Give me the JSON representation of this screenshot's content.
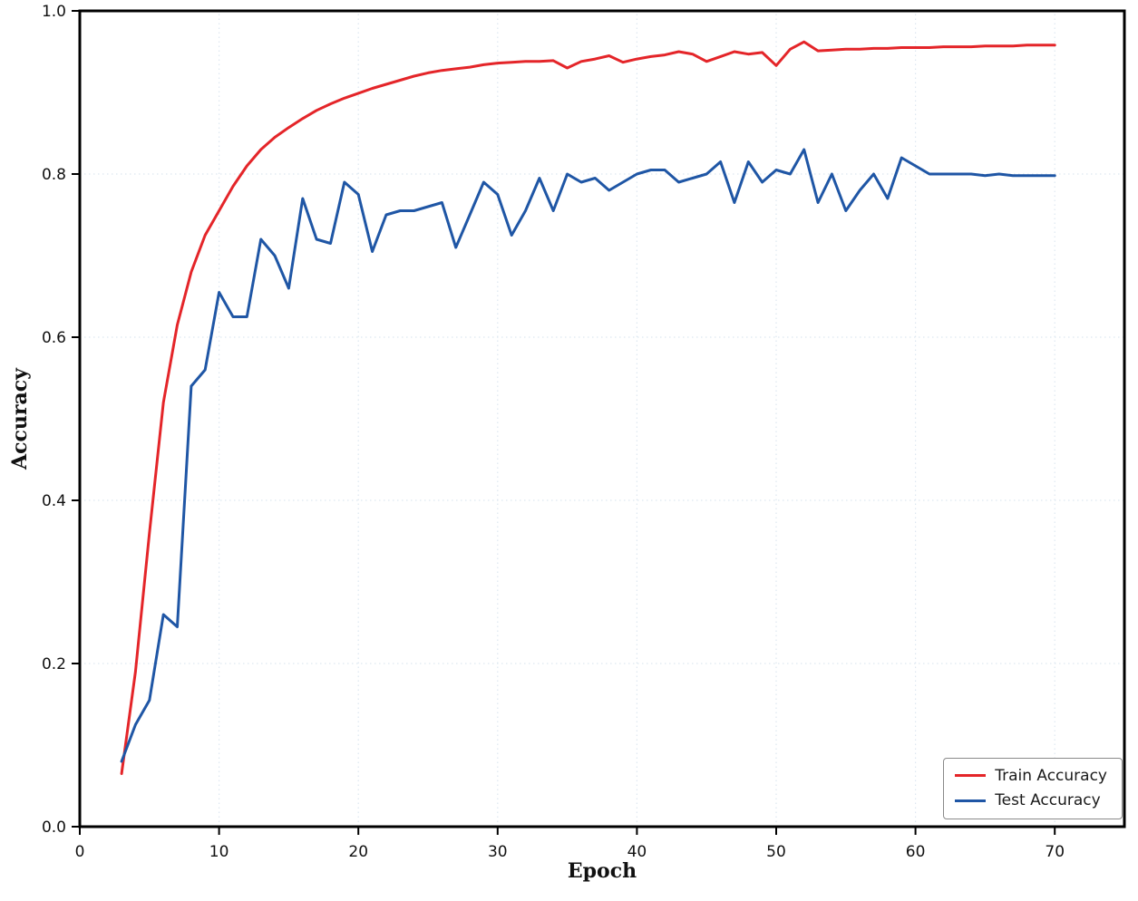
{
  "chart_data": {
    "type": "line",
    "title": "",
    "xlabel": "Epoch",
    "ylabel": "Accuracy",
    "xlim": [
      0,
      75
    ],
    "ylim": [
      0.0,
      1.0
    ],
    "x_ticks": [
      0,
      10,
      20,
      30,
      40,
      50,
      60,
      70
    ],
    "y_ticks": [
      0.0,
      0.2,
      0.4,
      0.6,
      0.8,
      1.0
    ],
    "grid": true,
    "grid_color": "#dde7f0",
    "legend_position": "lower right",
    "x": [
      3,
      4,
      5,
      6,
      7,
      8,
      9,
      10,
      11,
      12,
      13,
      14,
      15,
      16,
      17,
      18,
      19,
      20,
      21,
      22,
      23,
      24,
      25,
      26,
      27,
      28,
      29,
      30,
      31,
      32,
      33,
      34,
      35,
      36,
      37,
      38,
      39,
      40,
      41,
      42,
      43,
      44,
      45,
      46,
      47,
      48,
      49,
      50,
      51,
      52,
      53,
      54,
      55,
      56,
      57,
      58,
      59,
      60,
      61,
      62,
      63,
      64,
      65,
      66,
      67,
      68,
      69,
      70
    ],
    "series": [
      {
        "name": "Train Accuracy",
        "color": "#e42529",
        "values": [
          0.065,
          0.19,
          0.36,
          0.52,
          0.615,
          0.68,
          0.725,
          0.755,
          0.785,
          0.81,
          0.83,
          0.845,
          0.857,
          0.868,
          0.878,
          0.886,
          0.893,
          0.899,
          0.905,
          0.91,
          0.915,
          0.92,
          0.924,
          0.927,
          0.929,
          0.931,
          0.934,
          0.936,
          0.937,
          0.938,
          0.938,
          0.939,
          0.93,
          0.938,
          0.941,
          0.945,
          0.937,
          0.941,
          0.944,
          0.946,
          0.95,
          0.947,
          0.938,
          0.944,
          0.95,
          0.947,
          0.949,
          0.933,
          0.953,
          0.962,
          0.951,
          0.952,
          0.953,
          0.953,
          0.954,
          0.954,
          0.955,
          0.955,
          0.955,
          0.956,
          0.956,
          0.956,
          0.957,
          0.957,
          0.957,
          0.958,
          0.958,
          0.958
        ]
      },
      {
        "name": "Test Accuracy",
        "color": "#1f56a5",
        "values": [
          0.08,
          0.125,
          0.155,
          0.26,
          0.245,
          0.54,
          0.56,
          0.655,
          0.625,
          0.625,
          0.72,
          0.7,
          0.66,
          0.77,
          0.72,
          0.715,
          0.79,
          0.775,
          0.705,
          0.75,
          0.755,
          0.755,
          0.76,
          0.765,
          0.71,
          0.75,
          0.79,
          0.775,
          0.725,
          0.755,
          0.795,
          0.755,
          0.8,
          0.79,
          0.795,
          0.78,
          0.79,
          0.8,
          0.805,
          0.805,
          0.79,
          0.795,
          0.8,
          0.815,
          0.765,
          0.815,
          0.79,
          0.805,
          0.8,
          0.83,
          0.765,
          0.8,
          0.755,
          0.78,
          0.8,
          0.77,
          0.82,
          0.81,
          0.8,
          0.8,
          0.8,
          0.8,
          0.798,
          0.8,
          0.798,
          0.798,
          0.798,
          0.798
        ]
      }
    ]
  }
}
